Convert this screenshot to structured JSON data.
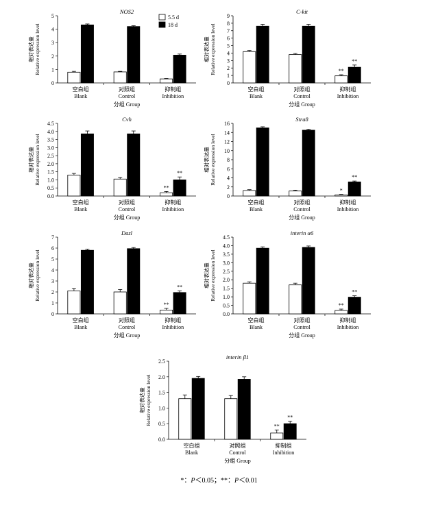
{
  "legend": [
    {
      "label": "5.5 d",
      "color": "#ffffff"
    },
    {
      "label": "18 d",
      "color": "#000000"
    }
  ],
  "footnote": {
    "sym1": "*：",
    "p1": "P",
    "cond1": "＜0.05；",
    "sym2": "**：",
    "p2": "P",
    "cond2": "＜0.01"
  },
  "chart_data": [
    {
      "type": "bar",
      "title": "NOS2",
      "categories": [
        [
          "空白组",
          "Blank"
        ],
        [
          "对照组",
          "Control"
        ],
        [
          "抑制组",
          "Inhibition"
        ]
      ],
      "ylabel_cn": "相对表达量",
      "ylabel_en": "Relative expression level",
      "xlabel": "分组 Group",
      "ylim": [
        0,
        5
      ],
      "yticks": [
        0,
        1,
        2,
        3,
        4,
        5
      ],
      "series": [
        {
          "name": "5.5 d",
          "values": [
            0.8,
            0.82,
            0.3
          ],
          "errors": [
            0.06,
            0.04,
            0.03
          ],
          "sig": [
            "",
            "",
            ""
          ]
        },
        {
          "name": "18 d",
          "values": [
            4.32,
            4.2,
            2.07
          ],
          "errors": [
            0.07,
            0.06,
            0.08
          ],
          "sig": [
            "",
            "",
            ""
          ]
        }
      ],
      "legend": true
    },
    {
      "type": "bar",
      "title": "C-kit",
      "categories": [
        [
          "空白组",
          "Blank"
        ],
        [
          "对照组",
          "Control"
        ],
        [
          "抑制组",
          "Inhibition"
        ]
      ],
      "ylabel_cn": "相对表达量",
      "ylabel_en": "Relative expression level",
      "xlabel": "分组 Group",
      "ylim": [
        0,
        9
      ],
      "yticks": [
        0,
        1,
        2,
        3,
        4,
        5,
        6,
        7,
        8,
        9
      ],
      "series": [
        {
          "name": "5.5 d",
          "values": [
            4.2,
            3.8,
            0.95
          ],
          "errors": [
            0.15,
            0.15,
            0.15
          ],
          "sig": [
            "",
            "",
            "**"
          ]
        },
        {
          "name": "18 d",
          "values": [
            7.6,
            7.6,
            2.1
          ],
          "errors": [
            0.25,
            0.25,
            0.3
          ],
          "sig": [
            "",
            "",
            "**"
          ]
        }
      ]
    },
    {
      "type": "bar",
      "title": "Cvh",
      "categories": [
        [
          "空白组",
          "Blank"
        ],
        [
          "对照组",
          "Control"
        ],
        [
          "抑制组",
          "Inhibition"
        ]
      ],
      "ylabel_cn": "相对表达量",
      "ylabel_en": "Relative expression level",
      "xlabel": "分组 Group",
      "ylim": [
        0,
        4.5
      ],
      "yticks": [
        0,
        0.5,
        1.0,
        1.5,
        2.0,
        2.5,
        3.0,
        3.5,
        4.0,
        4.5
      ],
      "series": [
        {
          "name": "5.5 d",
          "values": [
            1.3,
            1.05,
            0.2
          ],
          "errors": [
            0.1,
            0.1,
            0.08
          ],
          "sig": [
            "",
            "",
            "**"
          ]
        },
        {
          "name": "18 d",
          "values": [
            3.85,
            3.85,
            1.0
          ],
          "errors": [
            0.18,
            0.18,
            0.18
          ],
          "sig": [
            "",
            "",
            "**"
          ]
        }
      ]
    },
    {
      "type": "bar",
      "title": "Stra8",
      "categories": [
        [
          "空白组",
          "Blank"
        ],
        [
          "对照组",
          "Control"
        ],
        [
          "抑制组",
          "Inhibition"
        ]
      ],
      "ylabel_cn": "相对表达量",
      "ylabel_en": "Relative expression level",
      "xlabel": "分组 Group",
      "ylim": [
        0,
        16
      ],
      "yticks": [
        0,
        2,
        4,
        6,
        8,
        10,
        12,
        14,
        16
      ],
      "series": [
        {
          "name": "5.5 d",
          "values": [
            1.2,
            1.1,
            0.25
          ],
          "errors": [
            0.2,
            0.2,
            0.1
          ],
          "sig": [
            "",
            "",
            "*"
          ]
        },
        {
          "name": "18 d",
          "values": [
            15.0,
            14.5,
            3.1
          ],
          "errors": [
            0.25,
            0.2,
            0.2
          ],
          "sig": [
            "",
            "",
            "**"
          ]
        }
      ]
    },
    {
      "type": "bar",
      "title": "Dazl",
      "categories": [
        [
          "空白组",
          "Blank"
        ],
        [
          "对照组",
          "Control"
        ],
        [
          "抑制组",
          "Inhibition"
        ]
      ],
      "ylabel_cn": "相对表达量",
      "ylabel_en": "Relative expression level",
      "xlabel": "分组 Group",
      "ylim": [
        0,
        7
      ],
      "yticks": [
        0,
        1,
        2,
        3,
        4,
        5,
        6,
        7
      ],
      "series": [
        {
          "name": "5.5 d",
          "values": [
            2.1,
            2.0,
            0.35
          ],
          "errors": [
            0.22,
            0.22,
            0.15
          ],
          "sig": [
            "",
            "",
            "**"
          ]
        },
        {
          "name": "18 d",
          "values": [
            5.8,
            5.95,
            1.95
          ],
          "errors": [
            0.1,
            0.1,
            0.15
          ],
          "sig": [
            "",
            "",
            "**"
          ]
        }
      ]
    },
    {
      "type": "bar",
      "title": "interin α6",
      "categories": [
        [
          "空白组",
          "Blank"
        ],
        [
          "对照组",
          "Control"
        ],
        [
          "抑制组",
          "Inhibition"
        ]
      ],
      "ylabel_cn": "相对表达量",
      "ylabel_en": "Relative expression level",
      "xlabel": "分组 Group",
      "ylim": [
        0,
        4.5
      ],
      "yticks": [
        0,
        0.5,
        1.0,
        1.5,
        2.0,
        2.5,
        3.0,
        3.5,
        4.0,
        4.5
      ],
      "series": [
        {
          "name": "5.5 d",
          "values": [
            1.8,
            1.7,
            0.2
          ],
          "errors": [
            0.08,
            0.1,
            0.08
          ],
          "sig": [
            "",
            "",
            "**"
          ]
        },
        {
          "name": "18 d",
          "values": [
            3.85,
            3.9,
            0.98
          ],
          "errors": [
            0.08,
            0.08,
            0.08
          ],
          "sig": [
            "",
            "",
            "**"
          ]
        }
      ]
    },
    {
      "type": "bar",
      "title": "interin β1",
      "categories": [
        [
          "空白组",
          "Blank"
        ],
        [
          "对照组",
          "Control"
        ],
        [
          "抑制组",
          "Inhibition"
        ]
      ],
      "ylabel_cn": "相对表达量",
      "ylabel_en": "Relative expression level",
      "xlabel": "分组 Group",
      "ylim": [
        0,
        2.5
      ],
      "yticks": [
        0,
        0.5,
        1.0,
        1.5,
        2.0,
        2.5
      ],
      "series": [
        {
          "name": "5.5 d",
          "values": [
            1.3,
            1.3,
            0.2
          ],
          "errors": [
            0.12,
            0.1,
            0.1
          ],
          "sig": [
            "",
            "",
            "**"
          ]
        },
        {
          "name": "18 d",
          "values": [
            1.95,
            1.92,
            0.5
          ],
          "errors": [
            0.06,
            0.08,
            0.08
          ],
          "sig": [
            "",
            "",
            "**"
          ]
        }
      ]
    }
  ]
}
